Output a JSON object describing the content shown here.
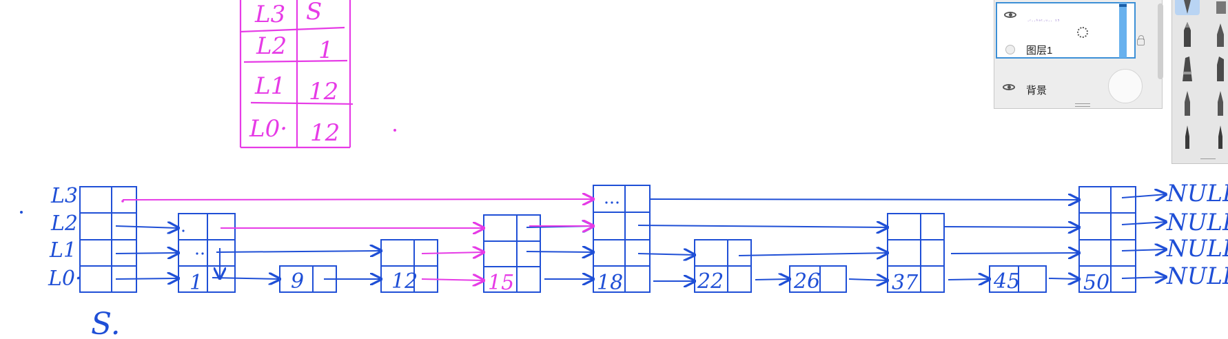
{
  "table": {
    "rows": [
      {
        "level": "L3",
        "value": "S"
      },
      {
        "level": "L2",
        "value": "1"
      },
      {
        "level": "L1",
        "value": "12"
      },
      {
        "level": "L0·",
        "value": "12"
      }
    ]
  },
  "head": {
    "labels": [
      "L3",
      "L2",
      "L1",
      "L0·"
    ],
    "name": "S."
  },
  "nodes": [
    "1",
    "9",
    "12",
    "15",
    "18",
    "22",
    "26",
    "37",
    "45",
    "50"
  ],
  "null_labels": [
    "NULL",
    "NULL",
    "NULL",
    "NULL"
  ],
  "layers_panel": {
    "layer1_name": "图层1",
    "background_name": "背景",
    "thumbnail_scribble": "·ʳ··ʰᵃᵗ·ᵘ·· ¹⁵"
  },
  "colors": {
    "blue_ink": "#1f4fd6",
    "magenta_ink": "#e63be6",
    "panel_bg": "#ededed",
    "selection": "#3b8fd6"
  }
}
